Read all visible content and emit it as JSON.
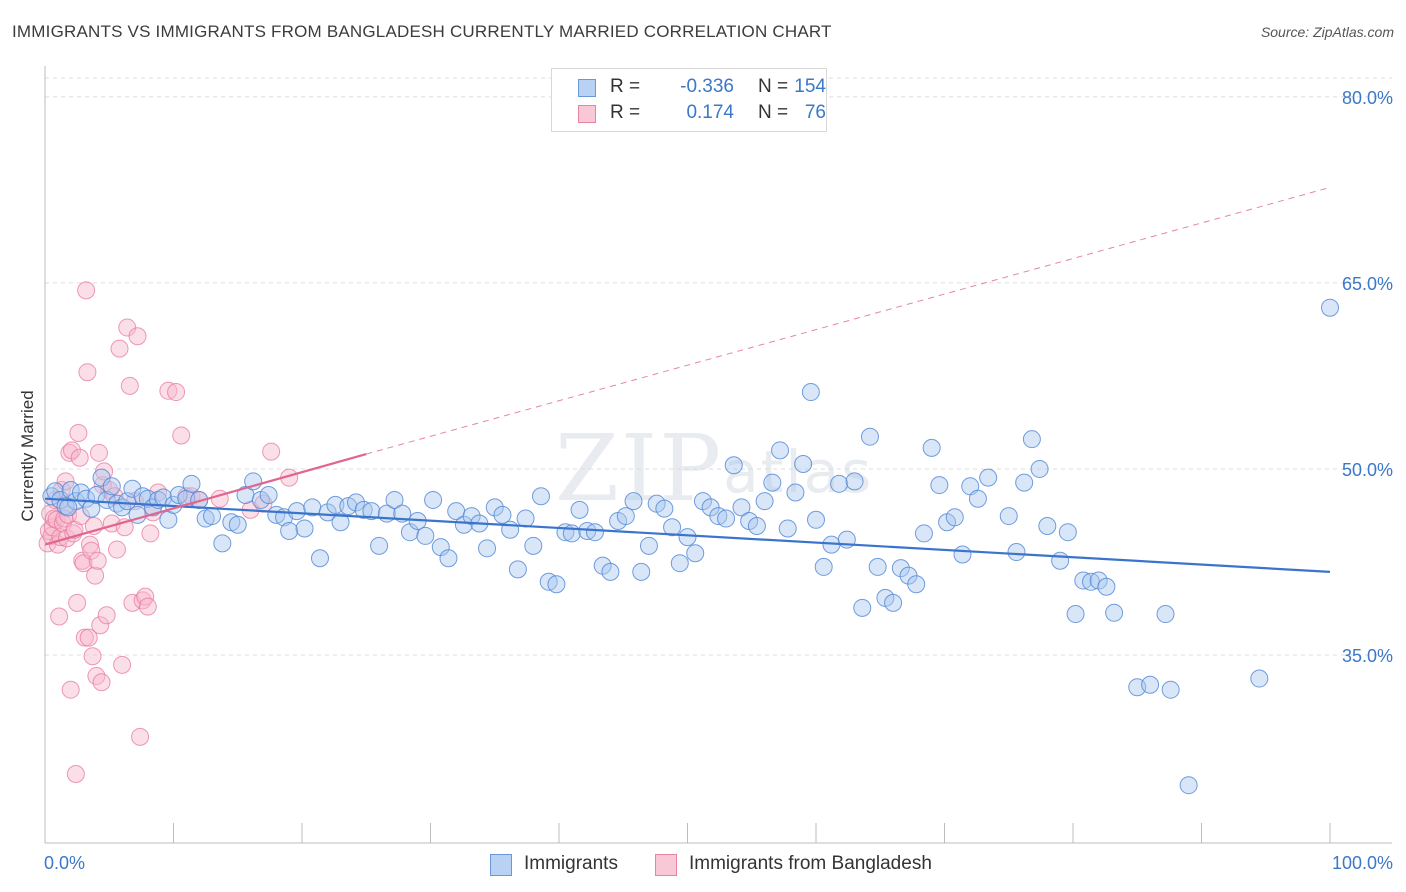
{
  "header": {
    "title": "IMMIGRANTS VS IMMIGRANTS FROM BANGLADESH CURRENTLY MARRIED CORRELATION CHART",
    "source": "Source: ZipAtlas.com"
  },
  "watermark": "ZIPatlas",
  "legend_top": {
    "rows": [
      {
        "r_label": "R =",
        "r_value": "-0.336",
        "n_label": "N =",
        "n_value": "154"
      },
      {
        "r_label": "R =",
        "r_value": "0.174",
        "n_label": "N =",
        "n_value": "76"
      }
    ]
  },
  "legend_bottom": {
    "items": [
      "Immigrants",
      "Immigrants from Bangladesh"
    ]
  },
  "colors": {
    "blue_fill": "#a9c7f0",
    "blue_stroke": "#4f86d6",
    "blue_line": "#3a74cc",
    "pink_fill": "#f7b8cb",
    "pink_stroke": "#e8789c",
    "pink_line": "#e0668f",
    "axis_label": "#3b78c9",
    "grid": "#dcdcdc"
  },
  "chart_data": {
    "type": "scatter",
    "title": "IMMIGRANTS VS IMMIGRANTS FROM BANGLADESH CURRENTLY MARRIED CORRELATION CHART",
    "xlabel": "",
    "ylabel": "Currently Married",
    "xlim": [
      0,
      100
    ],
    "ylim": [
      20,
      82
    ],
    "x_tick_labels": [
      "0.0%",
      "100.0%"
    ],
    "y_ticks": [
      35,
      50,
      65,
      80
    ],
    "y_tick_labels": [
      "35.0%",
      "50.0%",
      "65.0%",
      "80.0%"
    ],
    "grid": true,
    "series": [
      {
        "name": "Immigrants",
        "r": -0.336,
        "n": 154,
        "trend": {
          "x": [
            0,
            100
          ],
          "y": [
            47.6,
            41.7
          ]
        },
        "points": [
          [
            0.5,
            47.8
          ],
          [
            0.8,
            48.2
          ],
          [
            1.2,
            47.5
          ],
          [
            1.6,
            47.0
          ],
          [
            2.0,
            48.3
          ],
          [
            2.4,
            47.4
          ],
          [
            2.8,
            48.1
          ],
          [
            3.2,
            47.6
          ],
          [
            3.6,
            46.8
          ],
          [
            4.0,
            47.9
          ],
          [
            4.4,
            49.3
          ],
          [
            4.8,
            47.5
          ],
          [
            5.2,
            48.6
          ],
          [
            5.6,
            47.2
          ],
          [
            6.0,
            46.9
          ],
          [
            6.4,
            47.4
          ],
          [
            6.8,
            48.4
          ],
          [
            7.2,
            46.3
          ],
          [
            7.6,
            47.8
          ],
          [
            8.0,
            47.6
          ],
          [
            8.4,
            46.9
          ],
          [
            8.8,
            47.5
          ],
          [
            9.2,
            47.7
          ],
          [
            9.6,
            45.9
          ],
          [
            10.0,
            47.1
          ],
          [
            10.4,
            47.9
          ],
          [
            11.0,
            47.6
          ],
          [
            11.4,
            48.8
          ],
          [
            12.0,
            47.5
          ],
          [
            12.5,
            46.0
          ],
          [
            13.0,
            46.2
          ],
          [
            13.8,
            44.0
          ],
          [
            14.5,
            45.7
          ],
          [
            15.0,
            45.5
          ],
          [
            15.6,
            47.9
          ],
          [
            16.2,
            49.0
          ],
          [
            16.8,
            47.5
          ],
          [
            17.4,
            47.9
          ],
          [
            18.0,
            46.3
          ],
          [
            18.6,
            46.1
          ],
          [
            19.0,
            45.0
          ],
          [
            19.6,
            46.6
          ],
          [
            20.2,
            45.2
          ],
          [
            20.8,
            46.9
          ],
          [
            21.4,
            42.8
          ],
          [
            22.0,
            46.5
          ],
          [
            22.6,
            47.1
          ],
          [
            23.0,
            45.7
          ],
          [
            23.6,
            47.0
          ],
          [
            24.2,
            47.3
          ],
          [
            24.8,
            46.7
          ],
          [
            25.4,
            46.6
          ],
          [
            26.0,
            43.8
          ],
          [
            26.6,
            46.4
          ],
          [
            27.2,
            47.5
          ],
          [
            27.8,
            46.4
          ],
          [
            28.4,
            44.9
          ],
          [
            29.0,
            45.8
          ],
          [
            29.6,
            44.6
          ],
          [
            30.2,
            47.5
          ],
          [
            30.8,
            43.7
          ],
          [
            31.4,
            42.8
          ],
          [
            32.0,
            46.6
          ],
          [
            32.6,
            45.5
          ],
          [
            33.2,
            46.2
          ],
          [
            33.8,
            45.6
          ],
          [
            34.4,
            43.6
          ],
          [
            35.0,
            46.9
          ],
          [
            35.6,
            46.3
          ],
          [
            36.2,
            45.1
          ],
          [
            36.8,
            41.9
          ],
          [
            37.4,
            46.0
          ],
          [
            38.0,
            43.8
          ],
          [
            38.6,
            47.8
          ],
          [
            39.2,
            40.9
          ],
          [
            39.8,
            40.7
          ],
          [
            40.5,
            44.9
          ],
          [
            41.0,
            44.8
          ],
          [
            41.6,
            46.7
          ],
          [
            42.2,
            45.0
          ],
          [
            42.8,
            44.9
          ],
          [
            43.4,
            42.2
          ],
          [
            44.0,
            41.7
          ],
          [
            44.6,
            45.8
          ],
          [
            45.2,
            46.2
          ],
          [
            45.8,
            47.4
          ],
          [
            46.4,
            41.7
          ],
          [
            47.0,
            43.8
          ],
          [
            47.6,
            47.2
          ],
          [
            48.2,
            46.8
          ],
          [
            48.8,
            45.3
          ],
          [
            49.4,
            42.4
          ],
          [
            50.0,
            44.5
          ],
          [
            50.6,
            43.2
          ],
          [
            51.2,
            47.4
          ],
          [
            51.8,
            46.9
          ],
          [
            52.4,
            46.2
          ],
          [
            53.0,
            46.0
          ],
          [
            53.6,
            50.3
          ],
          [
            54.2,
            46.9
          ],
          [
            54.8,
            45.8
          ],
          [
            55.4,
            45.4
          ],
          [
            56.0,
            47.4
          ],
          [
            56.6,
            48.9
          ],
          [
            57.2,
            51.5
          ],
          [
            57.8,
            45.2
          ],
          [
            58.4,
            48.1
          ],
          [
            59.0,
            50.4
          ],
          [
            59.6,
            56.2
          ],
          [
            60.0,
            45.9
          ],
          [
            60.6,
            42.1
          ],
          [
            61.2,
            43.9
          ],
          [
            61.8,
            48.8
          ],
          [
            62.4,
            44.3
          ],
          [
            63.0,
            49.0
          ],
          [
            63.6,
            38.8
          ],
          [
            64.2,
            52.6
          ],
          [
            64.8,
            42.1
          ],
          [
            65.4,
            39.6
          ],
          [
            66.0,
            39.2
          ],
          [
            66.6,
            42.0
          ],
          [
            67.2,
            41.4
          ],
          [
            67.8,
            40.7
          ],
          [
            68.4,
            44.8
          ],
          [
            69.0,
            51.7
          ],
          [
            69.6,
            48.7
          ],
          [
            70.2,
            45.7
          ],
          [
            70.8,
            46.1
          ],
          [
            71.4,
            43.1
          ],
          [
            72.0,
            48.6
          ],
          [
            72.6,
            47.6
          ],
          [
            73.4,
            49.3
          ],
          [
            75.0,
            46.2
          ],
          [
            75.6,
            43.3
          ],
          [
            76.2,
            48.9
          ],
          [
            76.8,
            52.4
          ],
          [
            77.4,
            50.0
          ],
          [
            78.0,
            45.4
          ],
          [
            79.0,
            42.6
          ],
          [
            79.6,
            44.9
          ],
          [
            80.2,
            38.3
          ],
          [
            80.8,
            41.0
          ],
          [
            81.4,
            40.9
          ],
          [
            82.0,
            41.0
          ],
          [
            82.6,
            40.5
          ],
          [
            83.2,
            38.4
          ],
          [
            85.0,
            32.4
          ],
          [
            86.0,
            32.6
          ],
          [
            87.2,
            38.3
          ],
          [
            87.6,
            32.2
          ],
          [
            89.0,
            24.5
          ],
          [
            94.5,
            33.1
          ],
          [
            100.0,
            63.0
          ],
          [
            1.8,
            46.9
          ]
        ]
      },
      {
        "name": "Immigrants from Bangladesh",
        "r": 0.174,
        "n": 76,
        "trend": {
          "x": [
            0,
            25
          ],
          "y": [
            43.9,
            51.2
          ]
        },
        "trend_ext": {
          "x": [
            25,
            100
          ],
          "y": [
            51.2,
            72.7
          ]
        },
        "points": [
          [
            0.2,
            44.0
          ],
          [
            0.3,
            45.0
          ],
          [
            0.4,
            46.4
          ],
          [
            0.5,
            44.6
          ],
          [
            0.6,
            45.3
          ],
          [
            0.7,
            46.0
          ],
          [
            0.8,
            47.5
          ],
          [
            0.9,
            45.9
          ],
          [
            1.0,
            43.9
          ],
          [
            1.1,
            38.1
          ],
          [
            1.2,
            44.5
          ],
          [
            1.3,
            48.3
          ],
          [
            1.4,
            45.6
          ],
          [
            1.5,
            46.0
          ],
          [
            1.6,
            49.0
          ],
          [
            1.7,
            44.4
          ],
          [
            1.8,
            46.3
          ],
          [
            1.9,
            51.3
          ],
          [
            2.0,
            32.2
          ],
          [
            2.1,
            51.5
          ],
          [
            2.2,
            44.8
          ],
          [
            2.3,
            45.1
          ],
          [
            2.4,
            25.4
          ],
          [
            2.5,
            39.2
          ],
          [
            2.6,
            52.9
          ],
          [
            2.7,
            50.9
          ],
          [
            2.8,
            46.2
          ],
          [
            2.9,
            42.6
          ],
          [
            3.0,
            42.4
          ],
          [
            3.1,
            36.4
          ],
          [
            3.2,
            64.4
          ],
          [
            3.3,
            57.8
          ],
          [
            3.4,
            36.4
          ],
          [
            3.5,
            43.9
          ],
          [
            3.6,
            43.4
          ],
          [
            3.7,
            34.9
          ],
          [
            3.8,
            45.4
          ],
          [
            3.9,
            41.4
          ],
          [
            4.0,
            33.3
          ],
          [
            4.1,
            42.6
          ],
          [
            4.2,
            51.3
          ],
          [
            4.3,
            37.4
          ],
          [
            4.4,
            32.8
          ],
          [
            4.5,
            48.7
          ],
          [
            4.6,
            49.8
          ],
          [
            4.8,
            38.2
          ],
          [
            5.0,
            48.3
          ],
          [
            5.2,
            45.6
          ],
          [
            5.4,
            47.8
          ],
          [
            5.6,
            43.5
          ],
          [
            5.8,
            59.7
          ],
          [
            6.0,
            34.2
          ],
          [
            6.2,
            45.3
          ],
          [
            6.4,
            61.4
          ],
          [
            6.6,
            56.7
          ],
          [
            6.8,
            39.2
          ],
          [
            7.0,
            47.4
          ],
          [
            7.2,
            60.7
          ],
          [
            7.4,
            28.4
          ],
          [
            7.6,
            39.4
          ],
          [
            7.8,
            39.7
          ],
          [
            8.0,
            38.9
          ],
          [
            8.2,
            44.8
          ],
          [
            8.4,
            46.5
          ],
          [
            8.8,
            48.1
          ],
          [
            9.6,
            56.3
          ],
          [
            10.2,
            56.2
          ],
          [
            10.6,
            52.7
          ],
          [
            11.0,
            47.8
          ],
          [
            11.4,
            47.8
          ],
          [
            12.0,
            47.5
          ],
          [
            13.6,
            47.6
          ],
          [
            16.0,
            46.7
          ],
          [
            17.0,
            47.2
          ],
          [
            17.6,
            51.4
          ],
          [
            19.0,
            49.3
          ]
        ]
      }
    ]
  }
}
